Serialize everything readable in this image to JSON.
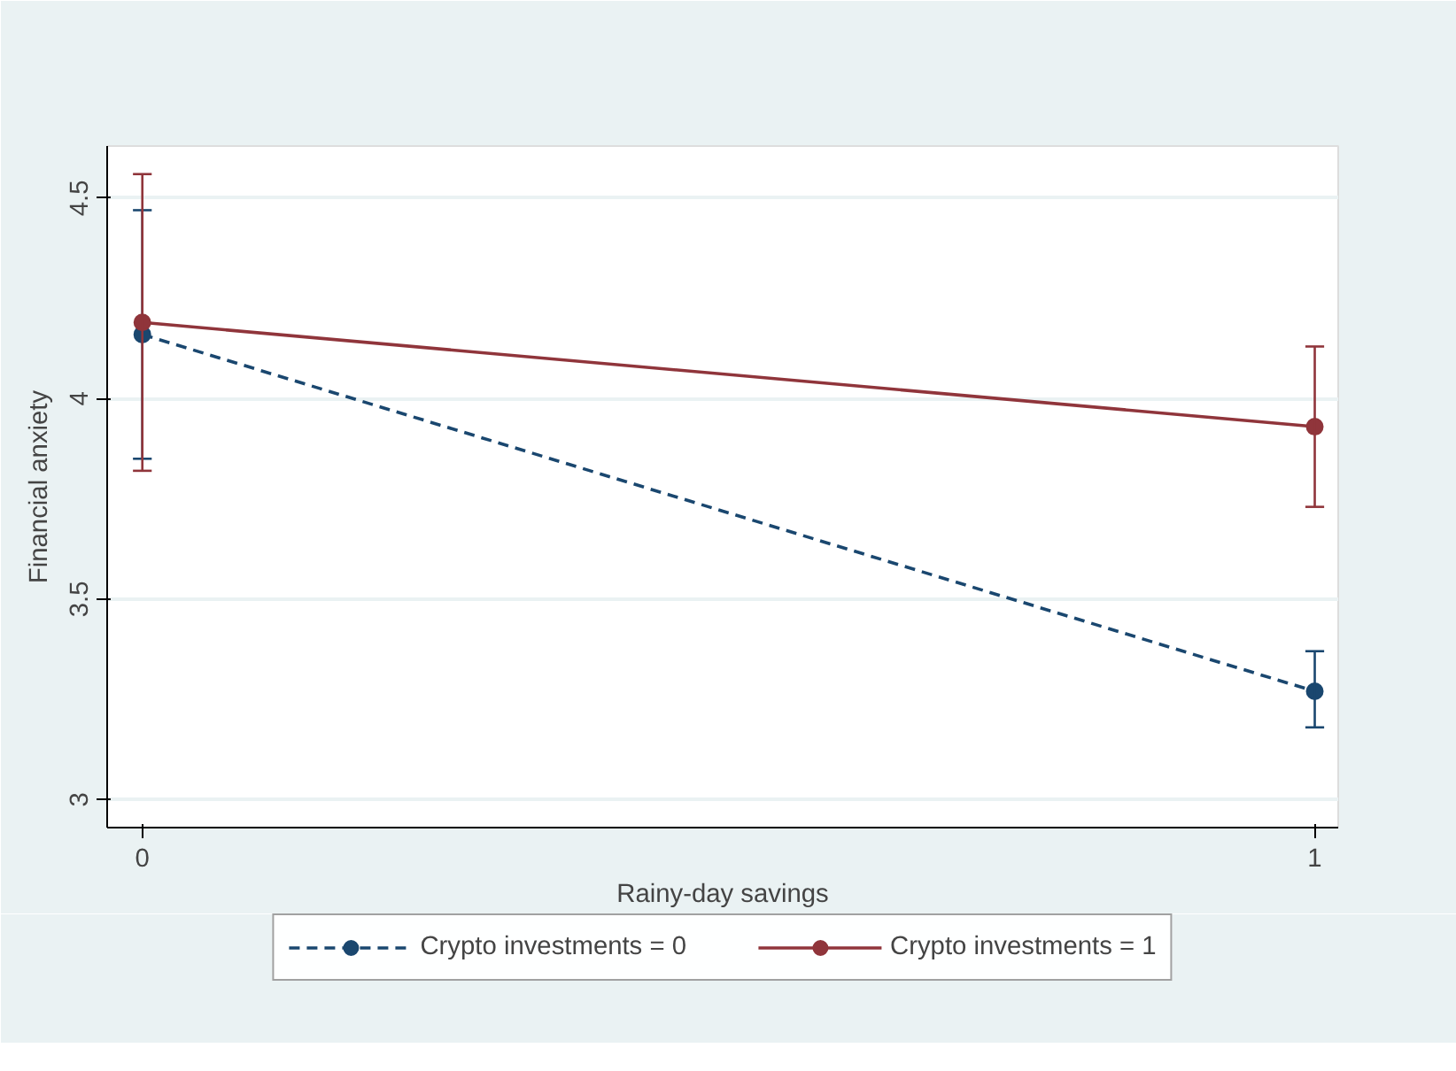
{
  "chart_data": {
    "type": "line",
    "xlabel": "Rainy-day savings",
    "ylabel": "Financial anxiety",
    "x": [
      0,
      1
    ],
    "xlim": [
      -0.03,
      1.02
    ],
    "xticks": [
      0,
      1
    ],
    "ylim": [
      2.93,
      4.63
    ],
    "yticks": [
      3,
      3.5,
      4,
      4.5
    ],
    "grid": "y",
    "legend": "bottom",
    "marker": "circle",
    "series": [
      {
        "name": "Crypto investments = 0",
        "color": "#1a476f",
        "line_style": "dashed",
        "values": [
          4.16,
          3.27
        ],
        "errors": [
          [
            3.85,
            4.47
          ],
          [
            3.18,
            3.37
          ]
        ]
      },
      {
        "name": "Crypto investments = 1",
        "color": "#90353b",
        "line_style": "solid",
        "values": [
          4.19,
          3.93
        ],
        "errors": [
          [
            3.82,
            4.56
          ],
          [
            3.73,
            4.13
          ]
        ]
      }
    ]
  }
}
